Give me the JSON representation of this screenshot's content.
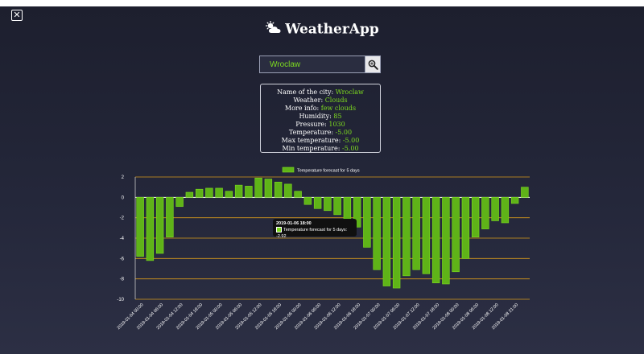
{
  "window": {
    "close_icon": "close-icon"
  },
  "header": {
    "title": "WeatherApp",
    "logo_icon": "cloud-sun-icon"
  },
  "search": {
    "value": "Wroclaw",
    "button_icon": "search-icon"
  },
  "info": {
    "rows": [
      {
        "label": "Name of the city: ",
        "value": "Wroclaw"
      },
      {
        "label": "Weather: ",
        "value": "Clouds"
      },
      {
        "label": "More info: ",
        "value": "few clouds"
      },
      {
        "label": "Humidity: ",
        "value": "85"
      },
      {
        "label": "Pressure: ",
        "value": "1030"
      },
      {
        "label": "Temperature: ",
        "value": "-5.00"
      },
      {
        "label": "Max temperature: ",
        "value": "-5.00"
      },
      {
        "label": "Min temperature: ",
        "value": "-5.00"
      }
    ]
  },
  "tooltip": {
    "title": "2019-01-06 18:00",
    "body": "Temperature forecast for 5 days: -2.92"
  },
  "colors": {
    "bar_fill": "#5fb318",
    "bar_stroke": "#7ddc1f",
    "grid": "#d99a1a",
    "accent_text": "#7ddc1f"
  },
  "chart_data": {
    "type": "bar",
    "legend": "Temperature forecast for 5 days",
    "legend_position": "top",
    "grid": true,
    "ylim": [
      -10,
      2
    ],
    "yticks": [
      2,
      0,
      -2,
      -4,
      -6,
      -8,
      -10
    ],
    "x_tick_labels": [
      "2019-01-04 00:00",
      "2019-01-04 06:00",
      "2019-01-04 12:00",
      "2019-01-04 18:00",
      "2019-01-05 00:00",
      "2019-01-05 06:00",
      "2019-01-05 12:00",
      "2019-01-05 18:00",
      "2019-01-06 00:00",
      "2019-01-06 06:00",
      "2019-01-06 12:00",
      "2019-01-06 18:00",
      "2019-01-07 00:00",
      "2019-01-07 06:00",
      "2019-01-07 12:00",
      "2019-01-07 18:00",
      "2019-01-08 00:00",
      "2019-01-08 06:00",
      "2019-01-08 12:00",
      "2019-01-08 21:00"
    ],
    "values": [
      -5.8,
      -6.2,
      -5.5,
      -3.9,
      -0.9,
      0.5,
      0.8,
      0.9,
      0.9,
      0.6,
      1.2,
      1.1,
      1.9,
      1.8,
      1.5,
      1.3,
      0.6,
      -0.7,
      -1.1,
      -1.3,
      -1.7,
      -2.2,
      -2.92,
      -4.9,
      -7.1,
      -8.7,
      -8.9,
      -7.7,
      -7.1,
      -7.5,
      -8.4,
      -8.5,
      -7.3,
      -6.0,
      -3.9,
      -3.1,
      -2.3,
      -2.5,
      -0.6,
      1.0
    ]
  }
}
